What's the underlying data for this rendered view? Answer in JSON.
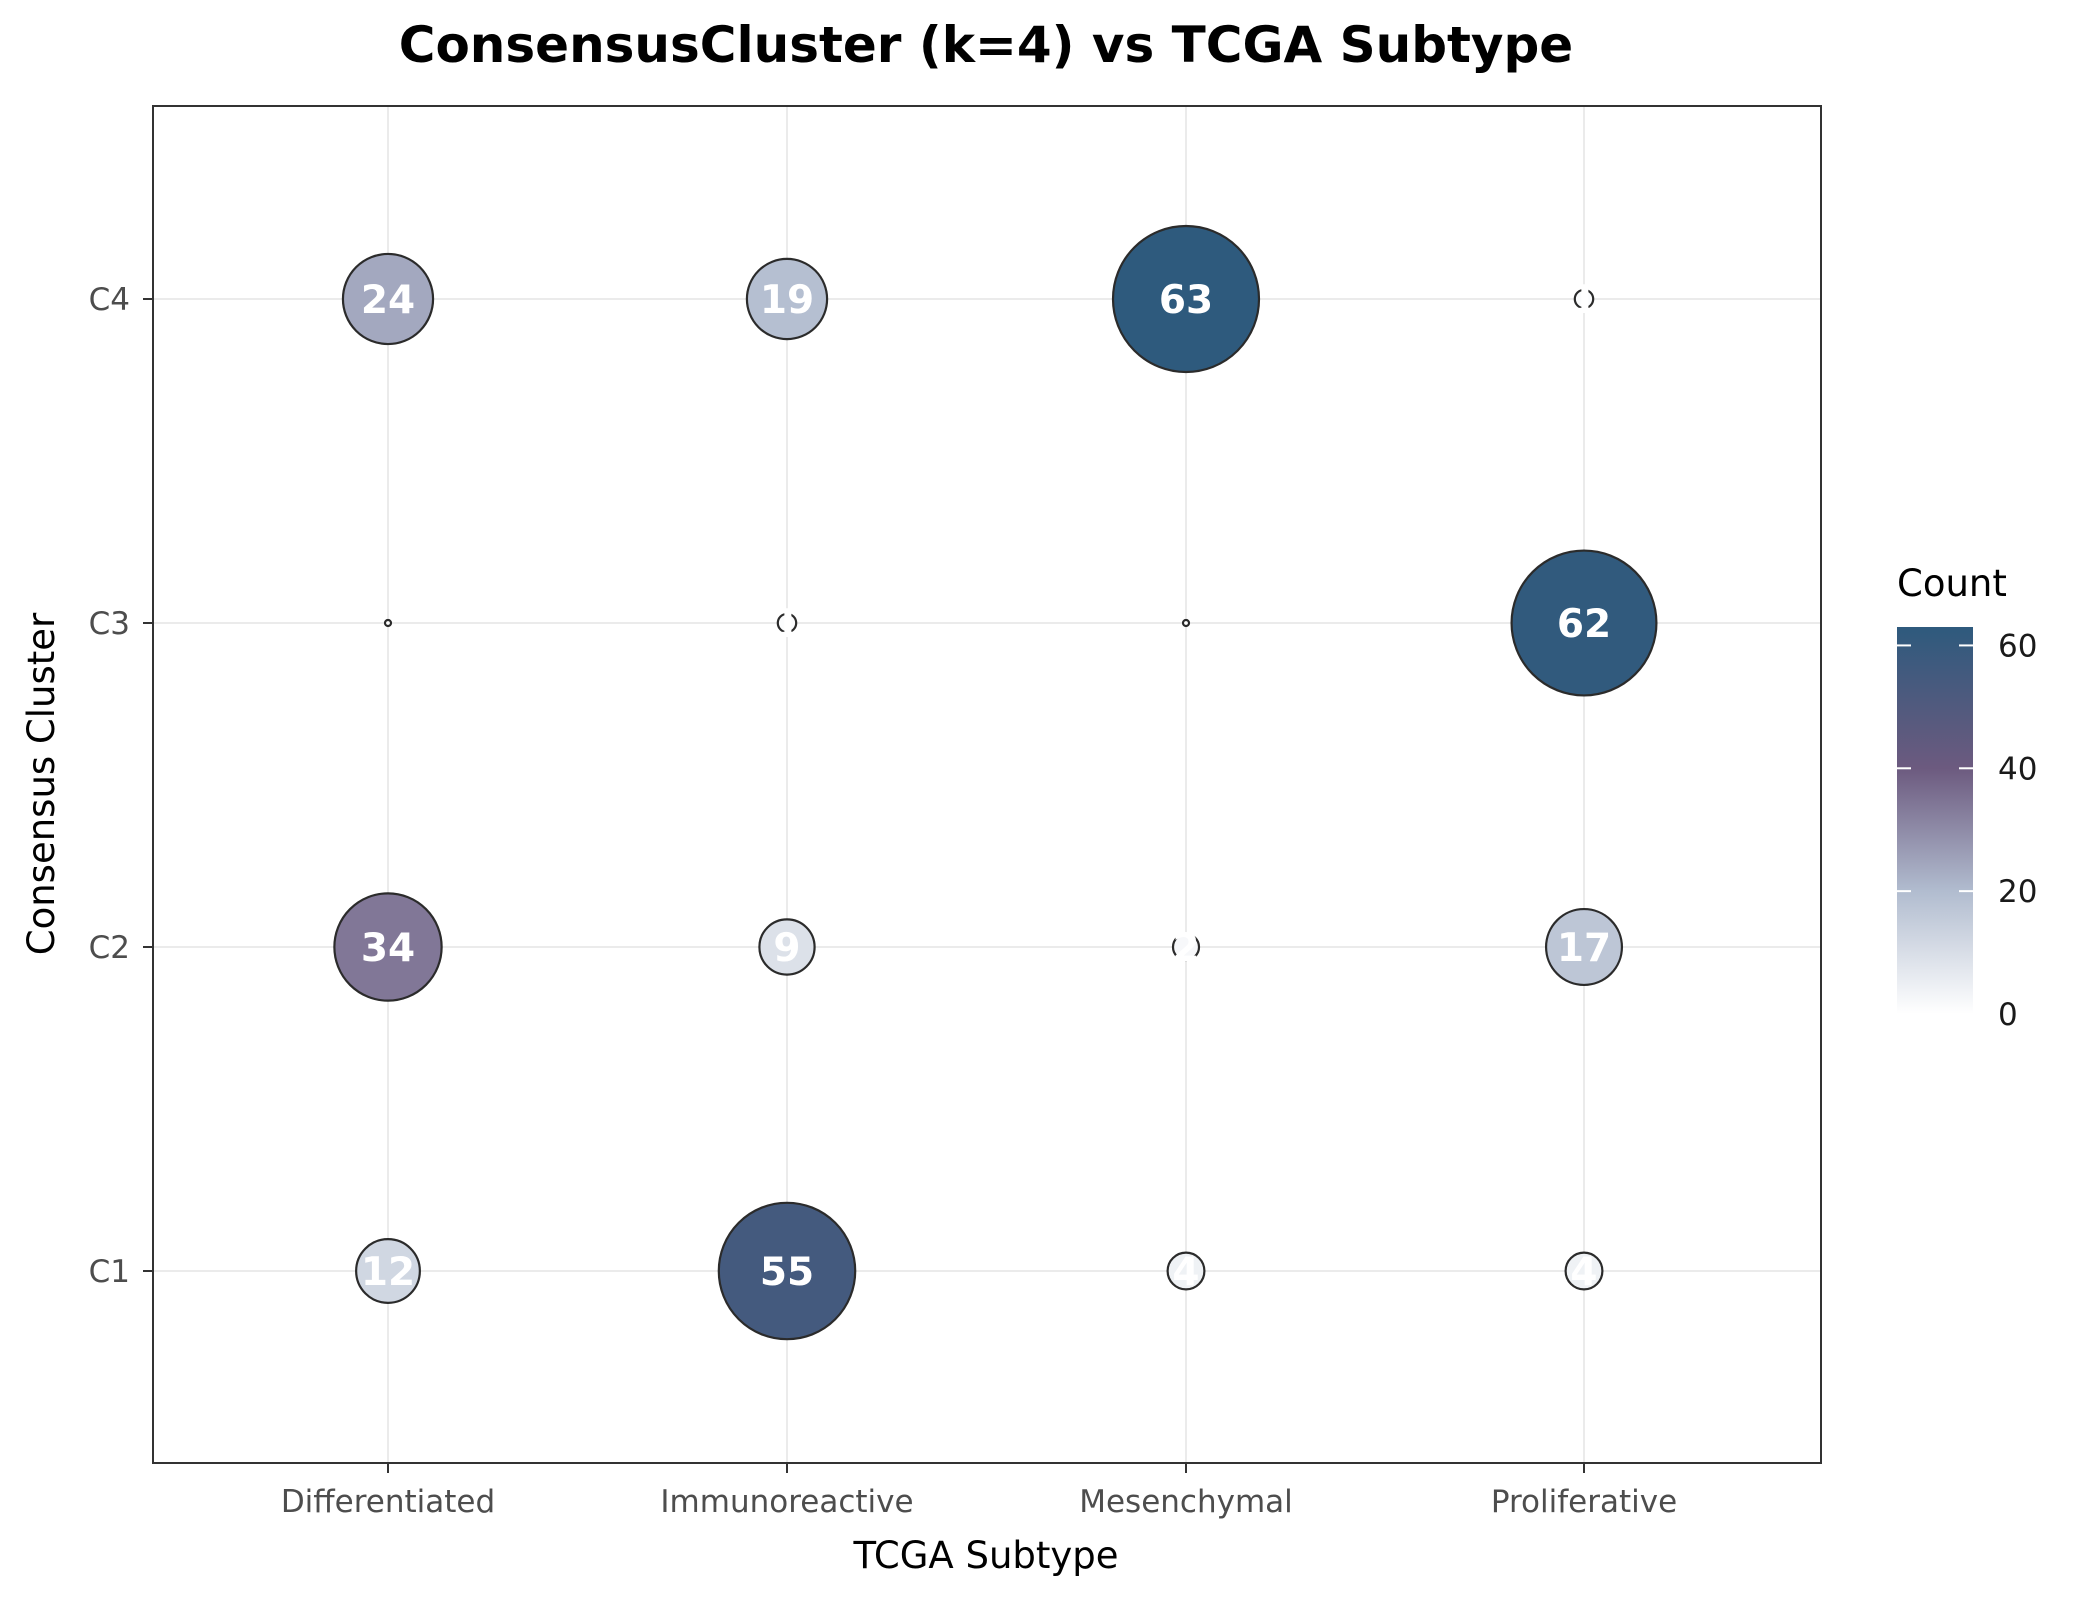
{
  "chart_data": {
    "type": "scatter",
    "subtype": "bubble",
    "title": "ConsensusCluster (k=4) vs TCGA Subtype",
    "xlabel": "TCGA Subtype",
    "ylabel": "Consensus Cluster",
    "categories_x": [
      "Differentiated",
      "Immunoreactive",
      "Mesenchymal",
      "Proliferative"
    ],
    "categories_y": [
      "C1",
      "C2",
      "C3",
      "C4"
    ],
    "points": [
      {
        "x": "Differentiated",
        "y": "C1",
        "count": 12
      },
      {
        "x": "Immunoreactive",
        "y": "C1",
        "count": 55
      },
      {
        "x": "Mesenchymal",
        "y": "C1",
        "count": 4
      },
      {
        "x": "Proliferative",
        "y": "C1",
        "count": 4
      },
      {
        "x": "Differentiated",
        "y": "C2",
        "count": 34
      },
      {
        "x": "Immunoreactive",
        "y": "C2",
        "count": 9
      },
      {
        "x": "Mesenchymal",
        "y": "C2",
        "count": 2
      },
      {
        "x": "Proliferative",
        "y": "C2",
        "count": 17
      },
      {
        "x": "Differentiated",
        "y": "C3",
        "count": 0
      },
      {
        "x": "Immunoreactive",
        "y": "C3",
        "count": 1
      },
      {
        "x": "Mesenchymal",
        "y": "C3",
        "count": 0
      },
      {
        "x": "Proliferative",
        "y": "C3",
        "count": 62
      },
      {
        "x": "Differentiated",
        "y": "C4",
        "count": 24
      },
      {
        "x": "Immunoreactive",
        "y": "C4",
        "count": 19
      },
      {
        "x": "Mesenchymal",
        "y": "C4",
        "count": 63
      },
      {
        "x": "Proliferative",
        "y": "C4",
        "count": 1
      }
    ],
    "legend": {
      "title": "Count",
      "position": "right",
      "ticks": [
        0,
        20,
        40,
        60
      ],
      "range": [
        0,
        63
      ],
      "colors": [
        "#ffffff",
        "#b1bccf",
        "#6c5a7f",
        "#2e5a7d"
      ]
    },
    "grid": true
  }
}
